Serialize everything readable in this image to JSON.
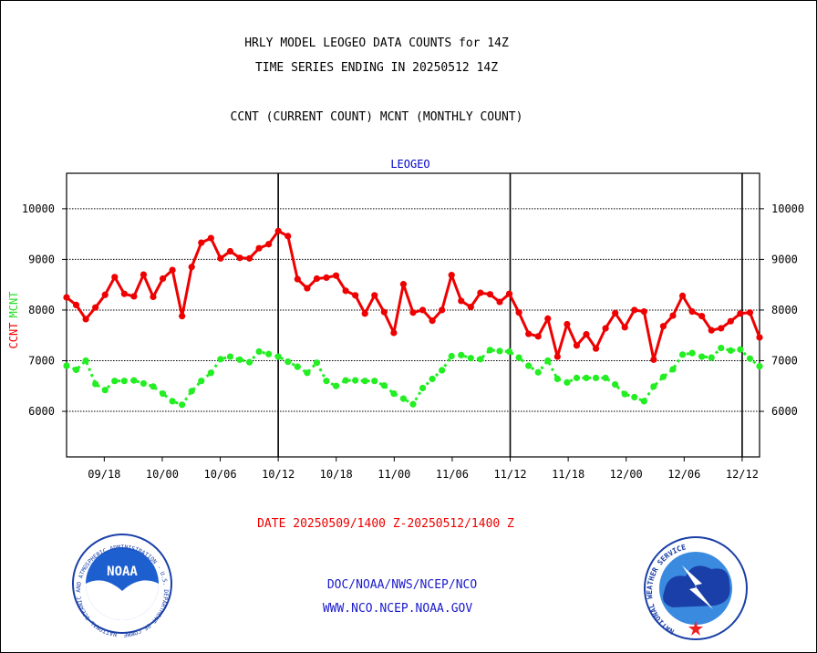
{
  "header": {
    "title_line1": "HRLY MODEL LEOGEO DATA COUNTS for 14Z",
    "title_line2": "TIME SERIES ENDING IN 20250512 14Z",
    "subtitle": "CCNT (CURRENT COUNT) MCNT (MONTHLY COUNT)"
  },
  "footer": {
    "date_range": "DATE 20250509/1400 Z-20250512/1400 Z",
    "org": "DOC/NOAA/NWS/NCEP/NCO",
    "url": "WWW.NCO.NCEP.NOAA.GOV",
    "noaa_logo_text": "NOAA",
    "noaa_ring_text": "NATIONAL OCEANIC AND ATMOSPHERIC ADMINISTRATION · U.S. DEPARTMENT OF COMMERCE",
    "nws_ring_text": "NATIONAL WEATHER SERVICE"
  },
  "chart_data": {
    "type": "line",
    "title": "LEOGEO",
    "ylabel_ccnt": "CCNT",
    "ylabel_mcnt": "MCNT",
    "ylim": [
      5100,
      10700
    ],
    "yticks": [
      6000,
      7000,
      8000,
      9000,
      10000
    ],
    "ytick_labels": [
      "6000",
      "7000",
      "8000",
      "9000",
      "10000"
    ],
    "xticks": [
      {
        "pos": 6.5,
        "label": "09/18"
      },
      {
        "pos": 16.5,
        "label": "10/00"
      },
      {
        "pos": 26.5,
        "label": "10/06"
      },
      {
        "pos": 36.5,
        "label": "10/12"
      },
      {
        "pos": 46.5,
        "label": "10/18"
      },
      {
        "pos": 56.5,
        "label": "11/00"
      },
      {
        "pos": 66.5,
        "label": "11/06"
      },
      {
        "pos": 76.5,
        "label": "11/12"
      },
      {
        "pos": 86.5,
        "label": "11/18"
      },
      {
        "pos": 96.5,
        "label": "12/00"
      },
      {
        "pos": 106.5,
        "label": "12/06"
      },
      {
        "pos": 116.5,
        "label": "12/12"
      }
    ],
    "xlim": [
      0,
      119.5
    ],
    "day_boundaries": [
      36.5,
      76.5,
      116.5
    ],
    "grid": true,
    "colors": {
      "ccnt": "#ee0000",
      "mcnt": "#22ee22",
      "title": "#0000cc"
    },
    "series": [
      {
        "name": "CCNT",
        "color": "#ee0000",
        "values": [
          8250,
          8100,
          7820,
          8050,
          8300,
          8650,
          8320,
          8270,
          8700,
          8260,
          8620,
          8790,
          7880,
          8850,
          9330,
          9420,
          9020,
          9160,
          9030,
          9020,
          9220,
          9300,
          9560,
          9460,
          8610,
          8430,
          8620,
          8640,
          8680,
          8380,
          8290,
          7930,
          8290,
          7960,
          7550,
          8510,
          7950,
          8000,
          7790,
          8000,
          8690,
          8180,
          8060,
          8340,
          8310,
          8160,
          8320,
          7950,
          7530,
          7480,
          7830,
          7080,
          7720,
          7300,
          7520,
          7240,
          7640,
          7940,
          7660,
          8000,
          7970,
          7020,
          7680,
          7890,
          8280,
          7970,
          7880,
          7600,
          7640,
          7780,
          7930,
          7950,
          7460
        ]
      },
      {
        "name": "MCNT",
        "color": "#22ee22",
        "values": [
          6900,
          6820,
          7000,
          6540,
          6420,
          6600,
          6600,
          6610,
          6550,
          6490,
          6350,
          6200,
          6130,
          6400,
          6600,
          6760,
          7030,
          7080,
          7020,
          6970,
          7180,
          7130,
          7080,
          6980,
          6880,
          6760,
          6960,
          6600,
          6500,
          6610,
          6610,
          6600,
          6600,
          6510,
          6350,
          6250,
          6140,
          6460,
          6640,
          6810,
          7090,
          7110,
          7050,
          7030,
          7210,
          7190,
          7180,
          7060,
          6900,
          6770,
          7000,
          6640,
          6570,
          6660,
          6660,
          6660,
          6660,
          6530,
          6340,
          6280,
          6200,
          6490,
          6680,
          6830,
          7120,
          7150,
          7080,
          7060,
          7250,
          7200,
          7220,
          7040,
          6890
        ]
      }
    ]
  }
}
